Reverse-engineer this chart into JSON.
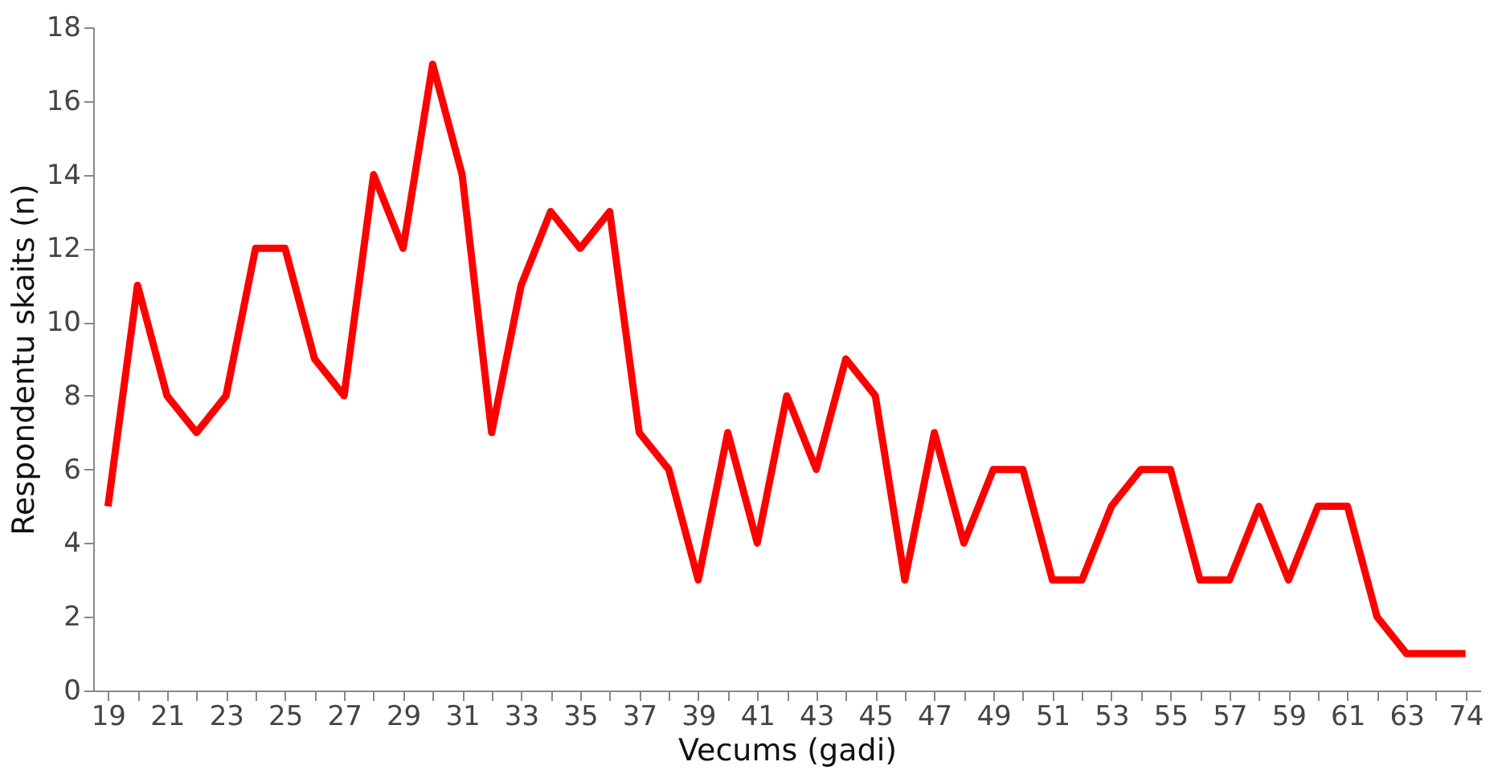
{
  "chart_data": {
    "type": "line",
    "xlabel": "Vecums (gadi)",
    "ylabel": "Respondentu skaits (n)",
    "categories": [
      "19",
      null,
      "21",
      null,
      "23",
      null,
      "25",
      null,
      "27",
      null,
      "29",
      null,
      "31",
      null,
      "33",
      null,
      "35",
      null,
      "37",
      null,
      "39",
      null,
      "41",
      null,
      "43",
      null,
      "45",
      null,
      "47",
      null,
      "49",
      null,
      "51",
      null,
      "53",
      null,
      "55",
      null,
      "57",
      null,
      "59",
      null,
      "61",
      null,
      "63",
      null,
      "74"
    ],
    "series": [
      {
        "color": "#ff0000",
        "values": [
          5,
          11,
          8,
          7,
          8,
          12,
          12,
          9,
          8,
          14,
          12,
          17,
          14,
          7,
          11,
          13,
          12,
          13,
          7,
          6,
          3,
          7,
          4,
          8,
          6,
          9,
          8,
          3,
          7,
          4,
          6,
          6,
          3,
          3,
          5,
          6,
          6,
          3,
          3,
          5,
          3,
          5,
          5,
          2,
          1,
          1,
          1
        ]
      }
    ],
    "ylim": [
      0,
      18
    ],
    "yticks": [
      0,
      2,
      4,
      6,
      8,
      10,
      12,
      14,
      16,
      18
    ],
    "grid": false,
    "legend": false,
    "marker": "none",
    "line_style": "solid"
  }
}
